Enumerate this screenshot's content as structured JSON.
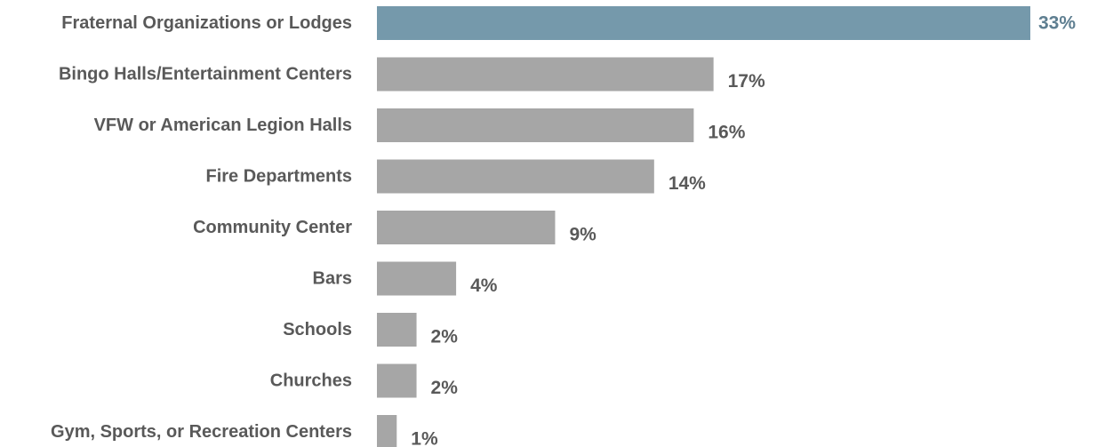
{
  "chart_data": {
    "type": "bar",
    "orientation": "horizontal",
    "categories": [
      "Fraternal Organizations or Lodges",
      "Bingo Halls/Entertainment Centers",
      "VFW or American Legion Halls",
      "Fire Departments",
      "Community Center",
      "Bars",
      "Schools",
      "Churches",
      "Gym, Sports, or Recreation Centers"
    ],
    "values": [
      33,
      17,
      16,
      14,
      9,
      4,
      2,
      2,
      1
    ],
    "value_labels": [
      "33%",
      "17%",
      "16%",
      "14%",
      "9%",
      "4%",
      "2%",
      "2%",
      "1%"
    ],
    "highlight_index": 0,
    "colors": {
      "highlight": "#7599ab",
      "bar": "#a6a6a6",
      "highlight_label": "#5f7f91",
      "value_label": "#595959",
      "category_label": "#595959"
    },
    "xlim": [
      0,
      33
    ],
    "grid": false,
    "legend": "none"
  }
}
